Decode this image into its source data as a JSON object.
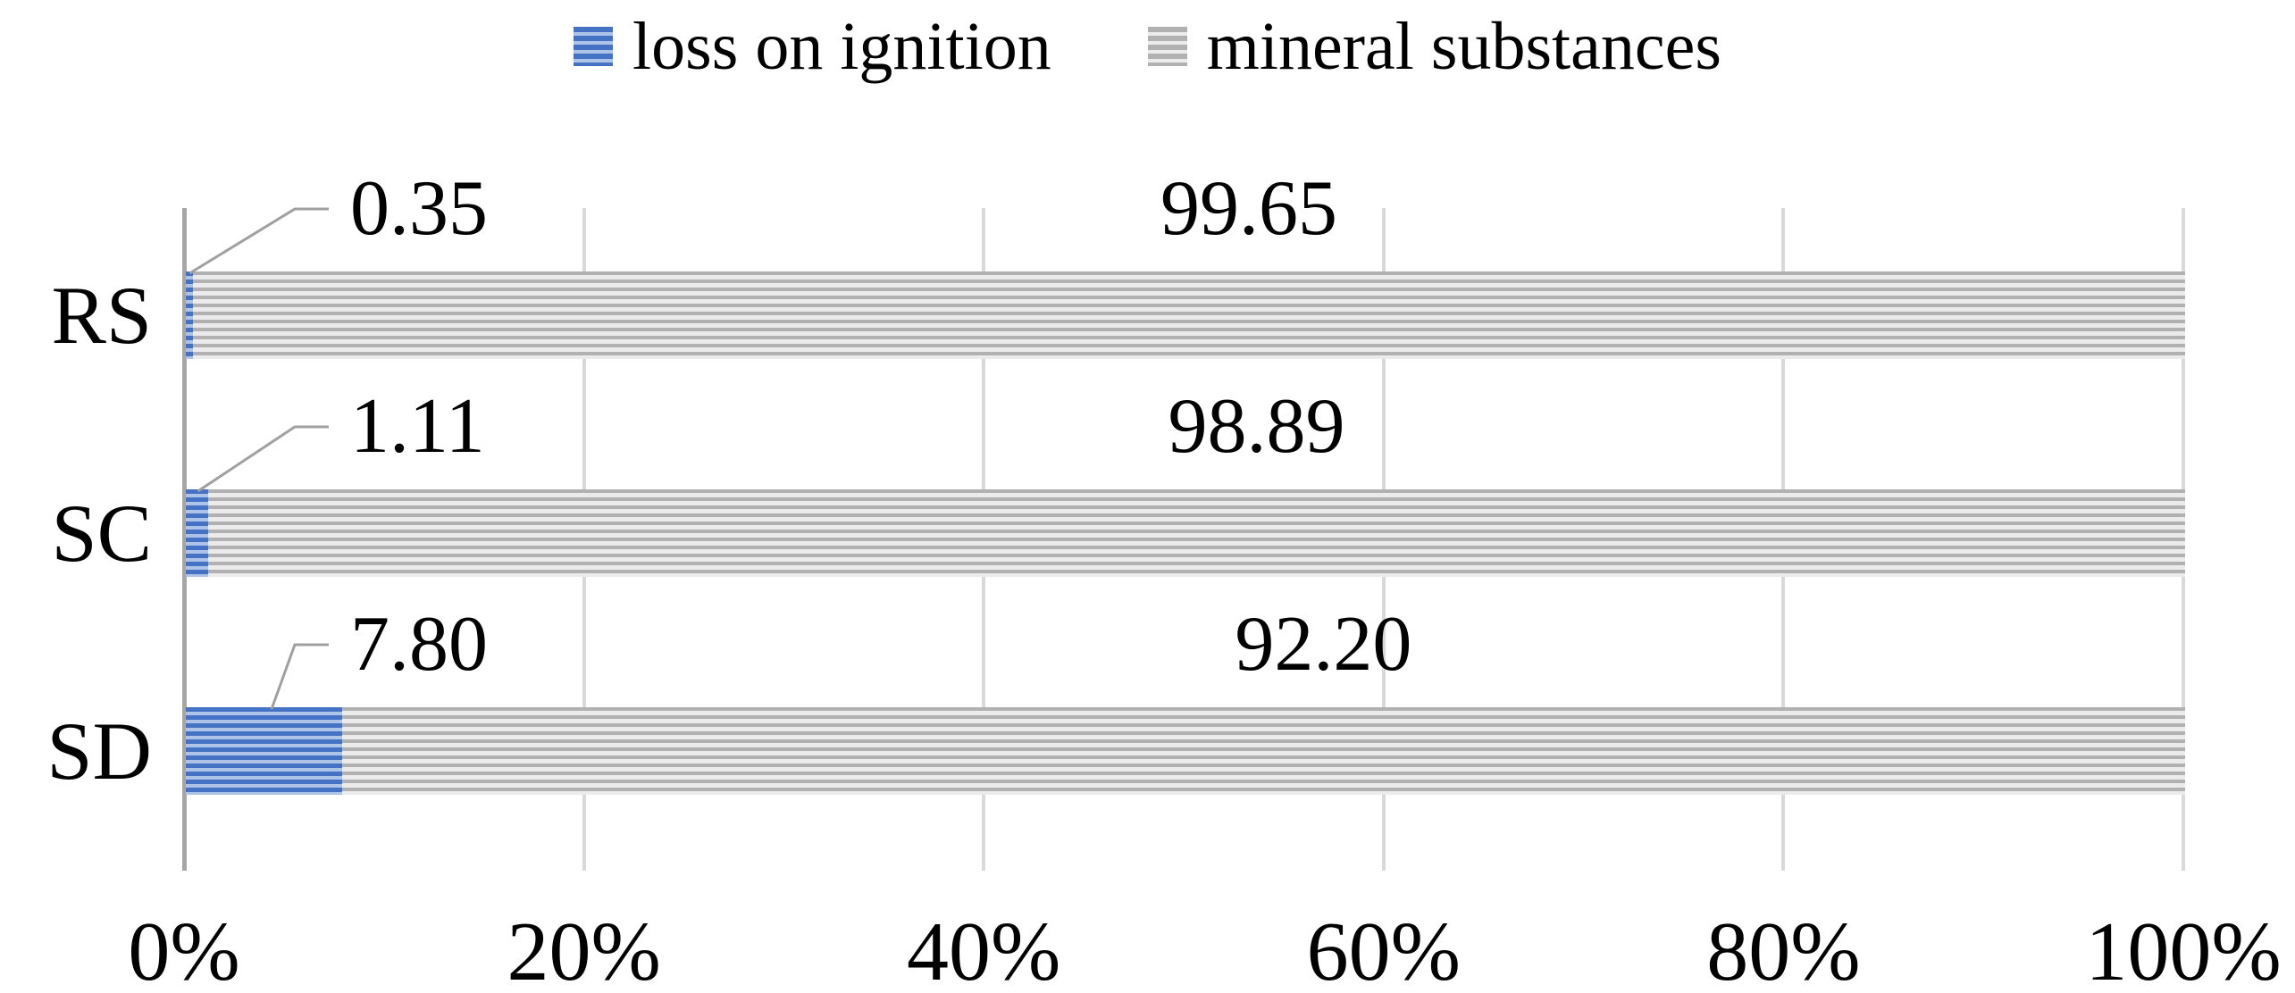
{
  "chart_data": {
    "type": "bar",
    "orientation": "horizontal",
    "stacked": true,
    "title": "",
    "categories": [
      "RS",
      "SC",
      "SD"
    ],
    "series": [
      {
        "name": "loss on ignition",
        "color": "#4472c4",
        "stripe_color": "#aec3e8",
        "values": [
          0.35,
          1.11,
          7.8
        ],
        "data_labels": [
          "0.35",
          "1.11",
          "7.80"
        ]
      },
      {
        "name": "mineral substances",
        "color": "#b1b1b1",
        "stripe_color": "#ebebeb",
        "values": [
          99.65,
          98.89,
          92.2
        ],
        "data_labels": [
          "99.65",
          "98.89",
          "92.20"
        ]
      }
    ],
    "xlim": [
      0,
      100
    ],
    "x_tick_labels": [
      "0%",
      "20%",
      "40%",
      "60%",
      "80%",
      "100%"
    ],
    "grid": true,
    "legend_position": "top-center",
    "axis_color": "#a6a6a6",
    "gridline_color": "#d9d9d9",
    "leader_line_color": "#a0a0a0",
    "text_color": "#000000",
    "background_color": "#ffffff"
  }
}
